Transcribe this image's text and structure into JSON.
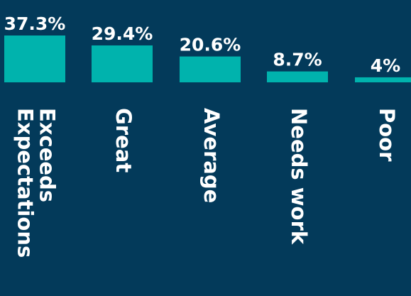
{
  "chart_data": {
    "type": "bar",
    "categories": [
      "Exceeds Expectations",
      "Great",
      "Average",
      "Needs work",
      "Poor"
    ],
    "values": [
      37.3,
      29.4,
      20.6,
      8.7,
      4
    ],
    "value_labels": [
      "37.3%",
      "29.4%",
      "20.6%",
      "8.7%",
      "4%"
    ],
    "category_label_lines": [
      [
        "Exceeds",
        "Expectations"
      ],
      [
        "Great"
      ],
      [
        "Average"
      ],
      [
        "Needs work"
      ],
      [
        "Poor"
      ]
    ],
    "unit": "%",
    "title": "",
    "xlabel": "",
    "ylabel": "",
    "ylim": [
      0,
      37.3
    ],
    "grid": false,
    "colors": {
      "background": "#033a5a",
      "bar": "#00b3ad",
      "text": "#ffffff"
    }
  }
}
